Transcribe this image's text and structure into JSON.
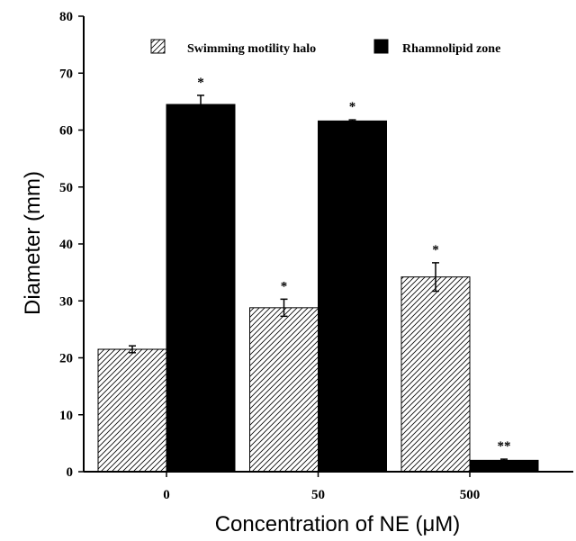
{
  "chart_data": {
    "type": "bar",
    "title": "",
    "xlabel": "Concentration of NE (μM)",
    "ylabel": "Diameter (mm)",
    "categories": [
      "0",
      "50",
      "500"
    ],
    "ylim": [
      0,
      80
    ],
    "yticks": [
      0,
      10,
      20,
      30,
      40,
      50,
      60,
      70,
      80
    ],
    "grid": false,
    "legend_position": "top",
    "series": [
      {
        "name": "Swimming motility halo",
        "fill": "hatched",
        "color": "#000000",
        "values": [
          21.5,
          28.8,
          34.2
        ],
        "errors": [
          0.6,
          1.5,
          2.5
        ],
        "annotations": [
          "",
          "*",
          "*"
        ]
      },
      {
        "name": "Rhamnolipid zone",
        "fill": "solid",
        "color": "#000000",
        "values": [
          64.5,
          61.6,
          2.0
        ],
        "errors": [
          1.6,
          0.2,
          0.2
        ],
        "annotations": [
          "*",
          "*",
          "**"
        ]
      }
    ]
  }
}
